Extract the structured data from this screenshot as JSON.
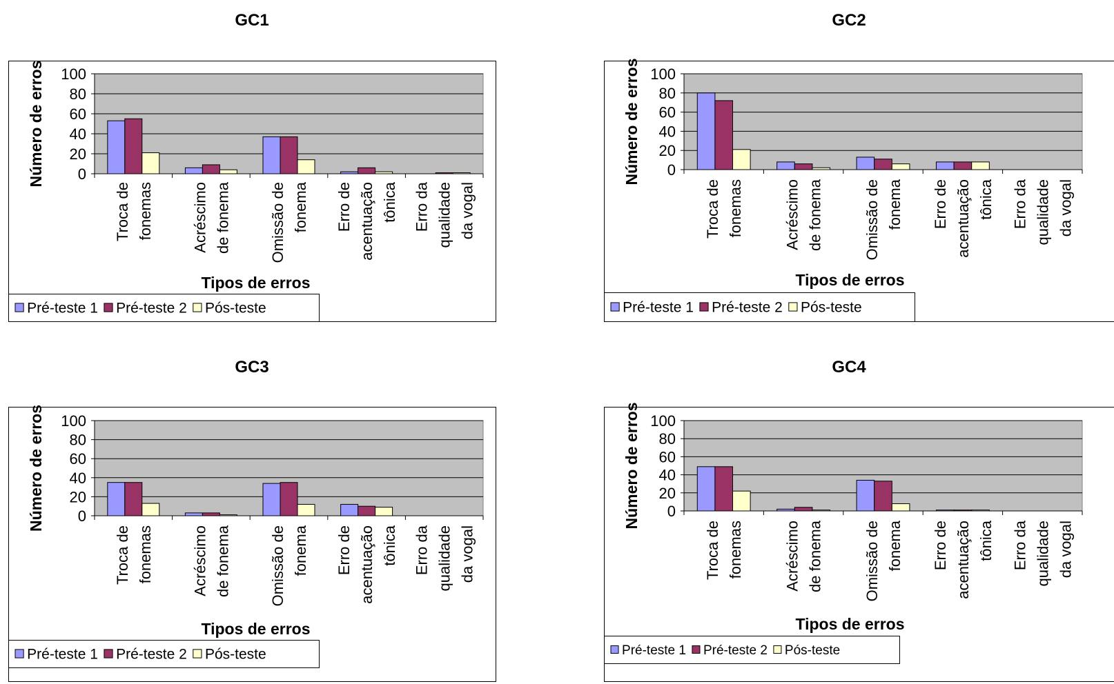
{
  "chart_data": [
    {
      "type": "bar",
      "title": "GC1",
      "xlabel": "Tipos de erros",
      "ylabel": "Número de erros",
      "ylim": [
        0,
        100
      ],
      "yticks": [
        0,
        20,
        40,
        60,
        80,
        100
      ],
      "grid": true,
      "legend": "bottom-left",
      "categories": [
        [
          "Troca de",
          "fonemas"
        ],
        [
          "Acréscimo",
          "de fonema"
        ],
        [
          "Omissão de",
          "fonema"
        ],
        [
          "Erro de",
          "acentuação",
          "tônica"
        ],
        [
          "Erro da",
          "qualidade",
          "da vogal"
        ]
      ],
      "series": [
        {
          "name": "Pré-teste 1",
          "color": "#9999FF",
          "values": [
            53,
            6,
            37,
            2,
            0
          ]
        },
        {
          "name": "Pré-teste 2",
          "color": "#993366",
          "values": [
            55,
            9,
            37,
            6,
            1
          ]
        },
        {
          "name": "Pós-teste",
          "color": "#FFFFCC",
          "values": [
            21,
            4,
            14,
            2,
            1
          ]
        }
      ]
    },
    {
      "type": "bar",
      "title": "GC2",
      "xlabel": "Tipos de erros",
      "ylabel": "Número de erros",
      "ylim": [
        0,
        100
      ],
      "yticks": [
        0,
        20,
        40,
        60,
        80,
        100
      ],
      "grid": true,
      "legend": "bottom-left",
      "categories": [
        [
          "Troca de",
          "fonemas"
        ],
        [
          "Acréscimo",
          "de fonema"
        ],
        [
          "Omissão de",
          "fonema"
        ],
        [
          "Erro de",
          "acentuação",
          "tônica"
        ],
        [
          "Erro da",
          "qualidade",
          "da vogal"
        ]
      ],
      "series": [
        {
          "name": "Pré-teste 1",
          "color": "#9999FF",
          "values": [
            80,
            8,
            13,
            8,
            0
          ]
        },
        {
          "name": "Pré-teste 2",
          "color": "#993366",
          "values": [
            72,
            6,
            11,
            8,
            0
          ]
        },
        {
          "name": "Pós-teste",
          "color": "#FFFFCC",
          "values": [
            21,
            2,
            6,
            8,
            0
          ]
        }
      ]
    },
    {
      "type": "bar",
      "title": "GC3",
      "xlabel": "Tipos de erros",
      "ylabel": "Número de erros",
      "ylim": [
        0,
        100
      ],
      "yticks": [
        0,
        20,
        40,
        60,
        80,
        100
      ],
      "grid": true,
      "legend": "bottom-left",
      "categories": [
        [
          "Troca de",
          "fonemas"
        ],
        [
          "Acréscimo",
          "de fonema"
        ],
        [
          "Omissão de",
          "fonema"
        ],
        [
          "Erro de",
          "acentuação",
          "tônica"
        ],
        [
          "Erro da",
          "qualidade",
          "da vogal"
        ]
      ],
      "series": [
        {
          "name": "Pré-teste 1",
          "color": "#9999FF",
          "values": [
            35,
            3,
            34,
            12,
            0
          ]
        },
        {
          "name": "Pré-teste 2",
          "color": "#993366",
          "values": [
            35,
            3,
            35,
            10,
            0
          ]
        },
        {
          "name": "Pós-teste",
          "color": "#FFFFCC",
          "values": [
            13,
            1,
            12,
            9,
            0
          ]
        }
      ]
    },
    {
      "type": "bar",
      "title": "GC4",
      "xlabel": "Tipos de erros",
      "ylabel": "Número de erros",
      "ylim": [
        0,
        100
      ],
      "yticks": [
        0,
        20,
        40,
        60,
        80,
        100
      ],
      "grid": true,
      "legend": "bottom-left",
      "categories": [
        [
          "Troca de",
          "fonemas"
        ],
        [
          "Acréscimo",
          "de fonema"
        ],
        [
          "Omissão de",
          "fonema"
        ],
        [
          "Erro de",
          "acentuação",
          "tônica"
        ],
        [
          "Erro da",
          "qualidade",
          "da vogal"
        ]
      ],
      "series": [
        {
          "name": "Pré-teste 1",
          "color": "#9999FF",
          "values": [
            49,
            2,
            34,
            1,
            0
          ]
        },
        {
          "name": "Pré-teste 2",
          "color": "#993366",
          "values": [
            49,
            4,
            33,
            1,
            0
          ]
        },
        {
          "name": "Pós-teste",
          "color": "#FFFFCC",
          "values": [
            22,
            1,
            8,
            1,
            0
          ]
        }
      ]
    }
  ]
}
